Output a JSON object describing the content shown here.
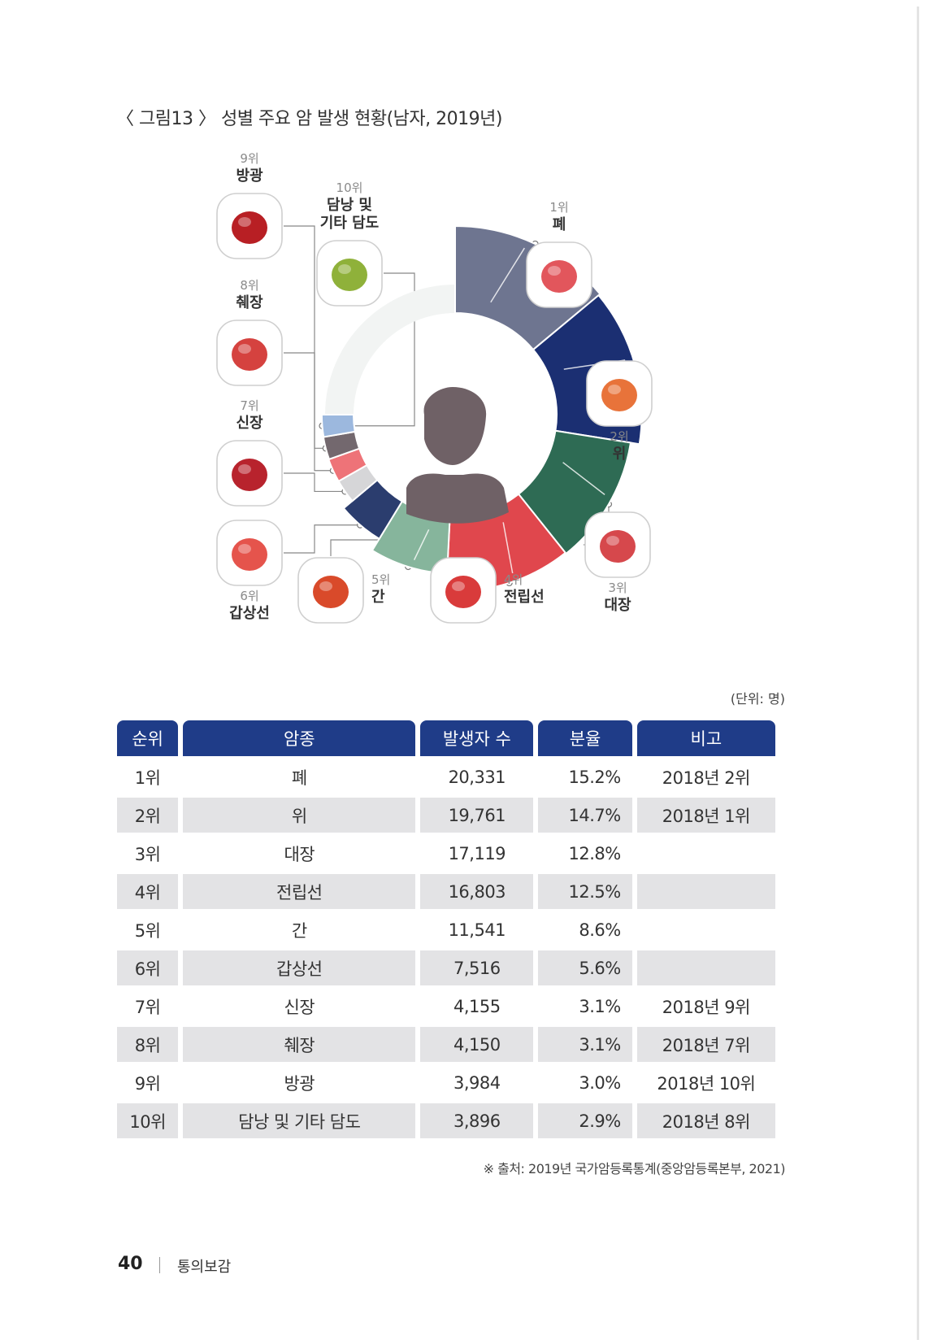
{
  "figure_title": "〈 그림13 〉 성별 주요 암 발생 현황(남자, 2019년)",
  "unit_note": "(단위: 명)",
  "organ_labels": [
    {
      "rank": "1위",
      "name": "폐",
      "icon": "lungs-icon"
    },
    {
      "rank": "2위",
      "name": "위",
      "icon": "stomach-icon"
    },
    {
      "rank": "3위",
      "name": "대장",
      "icon": "colon-icon"
    },
    {
      "rank": "4위",
      "name": "전립선",
      "icon": "prostate-icon"
    },
    {
      "rank": "5위",
      "name": "간",
      "icon": "liver-icon"
    },
    {
      "rank": "6위",
      "name": "갑상선",
      "icon": "thyroid-icon"
    },
    {
      "rank": "7위",
      "name": "신장",
      "icon": "kidney-icon"
    },
    {
      "rank": "8위",
      "name": "췌장",
      "icon": "pancreas-icon"
    },
    {
      "rank": "9위",
      "name": "방광",
      "icon": "bladder-icon"
    },
    {
      "rank": "10위",
      "name": "담낭 및 기타 담도",
      "name_lines": [
        "담낭 및",
        "기타 담도"
      ],
      "icon": "gallbladder-icon"
    }
  ],
  "table": {
    "headers": [
      "순위",
      "암종",
      "발생자 수",
      "분율",
      "비고"
    ],
    "rows": [
      [
        "1위",
        "폐",
        "20,331",
        "15.2%",
        "2018년 2위"
      ],
      [
        "2위",
        "위",
        "19,761",
        "14.7%",
        "2018년 1위"
      ],
      [
        "3위",
        "대장",
        "17,119",
        "12.8%",
        ""
      ],
      [
        "4위",
        "전립선",
        "16,803",
        "12.5%",
        ""
      ],
      [
        "5위",
        "간",
        "11,541",
        "8.6%",
        ""
      ],
      [
        "6위",
        "갑상선",
        "7,516",
        "5.6%",
        ""
      ],
      [
        "7위",
        "신장",
        "4,155",
        "3.1%",
        "2018년 9위"
      ],
      [
        "8위",
        "췌장",
        "4,150",
        "3.1%",
        "2018년 7위"
      ],
      [
        "9위",
        "방광",
        "3,984",
        "3.0%",
        "2018년 10위"
      ],
      [
        "10위",
        "담낭 및 기타 담도",
        "3,896",
        "2.9%",
        "2018년 8위"
      ]
    ]
  },
  "source": "※ 출처: 2019년 국가암등록통계(중앙암등록본부, 2021)",
  "page_number": "40",
  "book_title": "통의보감",
  "chart_data": {
    "type": "pie",
    "categories": [
      "폐",
      "위",
      "대장",
      "전립선",
      "간",
      "갑상선",
      "신장",
      "췌장",
      "방광",
      "담낭 및 기타 담도"
    ],
    "values": [
      20331,
      19761,
      17119,
      16803,
      11541,
      7516,
      4155,
      4150,
      3984,
      3896
    ],
    "percent": [
      15.2,
      14.7,
      12.8,
      12.5,
      8.6,
      5.6,
      3.1,
      3.1,
      3.0,
      2.9
    ],
    "colors": [
      "#6e7590",
      "#1b2f72",
      "#2e6b54",
      "#e0474d",
      "#86b59c",
      "#2b3d6e",
      "#d6d6d8",
      "#ee7378",
      "#73686e",
      "#9cb8de"
    ]
  }
}
